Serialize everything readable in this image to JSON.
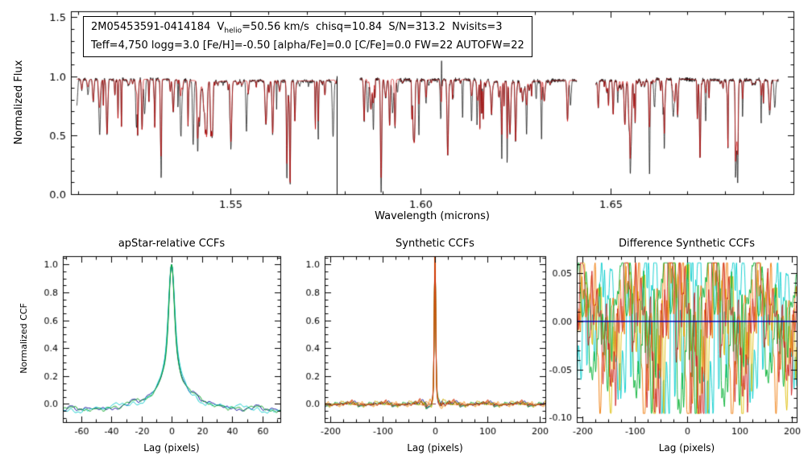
{
  "annotation": {
    "line1_prefix": "2M05453591-0414184  V",
    "vhelio_sub": "helio",
    "line1_rest": "=50.56 km/s  chisq=10.84  S/N=313.2  Nvisits=3",
    "line2": "Teff=4,750 logg=3.0 [Fe/H]=-0.50 [alpha/Fe]=0.0 [C/Fe]=0.0 FW=22 AUTOFW=22",
    "values": {
      "star_id": "2M05453591-0414184",
      "vhelio_kms": 50.56,
      "chisq": 10.84,
      "s_n": 313.2,
      "nvisits": 3,
      "teff": 4750,
      "logg": 3.0,
      "fe_h": -0.5,
      "alpha_fe": 0.0,
      "c_fe": 0.0,
      "fw": 22,
      "autofw": 22
    }
  },
  "chart_data": [
    {
      "id": "spectrum",
      "type": "line",
      "title": "",
      "xlabel": "Wavelength (microns)",
      "ylabel": "Normalized Flux",
      "xlim": [
        1.508,
        1.698
      ],
      "ylim": [
        0,
        1.55
      ],
      "xticks": {
        "values": [
          1.55,
          1.6,
          1.65
        ],
        "labels": [
          "1.55",
          "1.60",
          "1.65"
        ],
        "minor_step": 0.01
      },
      "yticks": {
        "values": [
          0,
          0.5,
          1,
          1.5
        ],
        "labels": [
          "0.0",
          "0.5",
          "1.0",
          "1.5"
        ],
        "minor_step": 0.1
      },
      "series": [
        {
          "name": "observed spectrum",
          "color": "#000000"
        },
        {
          "name": "best-fit synthetic spectrum",
          "color": "#cc0000"
        }
      ],
      "detector_chips": [
        [
          1.5095,
          1.578
        ],
        [
          1.584,
          1.641
        ],
        [
          1.646,
          1.694
        ]
      ],
      "continuum_level": 0.97,
      "typical_line_depth_range": [
        0.03,
        0.5
      ],
      "deep_feature": {
        "wavelength": 1.578,
        "min_flux": 0.0
      },
      "emission_spike": {
        "wavelength": 1.6055,
        "max_flux": 1.13
      },
      "lines_per_chip": [
        95,
        85,
        70
      ],
      "noise_sigma": 0.008,
      "seed": 20
    },
    {
      "id": "apstar_ccf",
      "type": "line",
      "title": "apStar-relative CCFs",
      "xlabel": "Lag (pixels)",
      "ylabel": "Normalized CCF",
      "xlim": [
        -72,
        72
      ],
      "ylim": [
        -0.13,
        1.06
      ],
      "xticks": {
        "values": [
          -60,
          -40,
          -20,
          0,
          20,
          40,
          60
        ],
        "labels": [
          "-60",
          "-40",
          "-20",
          "0",
          "20",
          "40",
          "60"
        ],
        "minor_step": 10
      },
      "yticks": {
        "values": [
          0,
          0.2,
          0.4,
          0.6,
          0.8,
          1.0
        ],
        "labels": [
          "0.0",
          "0.2",
          "0.4",
          "0.6",
          "0.8",
          "1.0"
        ],
        "minor_step": 0.05
      },
      "peak": {
        "lag": 0,
        "value": 1.0,
        "fwhm_pixels": 5
      },
      "baseline_level": -0.05,
      "series": [
        {
          "name": "visit CCF 1",
          "color": "#000099"
        },
        {
          "name": "visit CCF 2",
          "color": "#00c8c8"
        },
        {
          "name": "visit CCF 3",
          "color": "#00a020"
        }
      ],
      "seed": 7
    },
    {
      "id": "synthetic_ccf",
      "type": "line",
      "title": "Synthetic CCFs",
      "xlabel": "Lag (pixels)",
      "ylabel": "",
      "xlim": [
        -210,
        210
      ],
      "ylim": [
        -0.13,
        1.06
      ],
      "xticks": {
        "values": [
          -200,
          -100,
          0,
          100,
          200
        ],
        "labels": [
          "-200",
          "-100",
          "0",
          "100",
          "200"
        ],
        "minor_step": 25
      },
      "yticks": {
        "values": [
          0,
          0.2,
          0.4,
          0.6,
          0.8,
          1.0
        ],
        "labels": [
          "0.0",
          "0.2",
          "0.4",
          "0.6",
          "0.8",
          "1.0"
        ],
        "minor_step": 0.05
      },
      "peak": {
        "lag": 0,
        "value": 1.0,
        "fwhm_pixels": 4
      },
      "baseline_level": 0.0,
      "zero_line": {
        "y": 0,
        "style": "dashed",
        "color": "#993333"
      },
      "series": [
        {
          "name": "visit CCF 1",
          "color": "#000099"
        },
        {
          "name": "visit CCF 2",
          "color": "#00a020"
        },
        {
          "name": "visit CCF 3",
          "color": "#c8a800"
        },
        {
          "name": "visit CCF 4",
          "color": "#ee8800"
        },
        {
          "name": "visit CCF 5",
          "color": "#cc2200"
        }
      ],
      "seed": 11
    },
    {
      "id": "difference_ccf",
      "type": "line",
      "title": "Difference Synthetic CCFs",
      "xlabel": "Lag (pixels)",
      "ylabel": "",
      "xlim": [
        -210,
        210
      ],
      "ylim": [
        -0.105,
        0.068
      ],
      "xticks": {
        "values": [
          -200,
          -100,
          0,
          100,
          200
        ],
        "labels": [
          "-200",
          "-100",
          "0",
          "100",
          "200"
        ],
        "minor_step": 25
      },
      "yticks": {
        "values": [
          -0.1,
          -0.05,
          0,
          0.05
        ],
        "labels": [
          "-0.10",
          "-0.05",
          "0.00",
          "0.05"
        ],
        "minor_step": 0.01
      },
      "value_range": [
        -0.096,
        0.061
      ],
      "zero_line": {
        "y": 0,
        "style": "solid",
        "color": "#0000bb"
      },
      "series": [
        {
          "name": "difference CCF 1",
          "color": "#00cccc"
        },
        {
          "name": "difference CCF 2",
          "color": "#ddbb00"
        },
        {
          "name": "difference CCF 3",
          "color": "#ee7700"
        },
        {
          "name": "difference CCF 4",
          "color": "#00b030"
        },
        {
          "name": "difference CCF 5",
          "color": "#cc2222"
        }
      ],
      "seed": 31
    }
  ]
}
